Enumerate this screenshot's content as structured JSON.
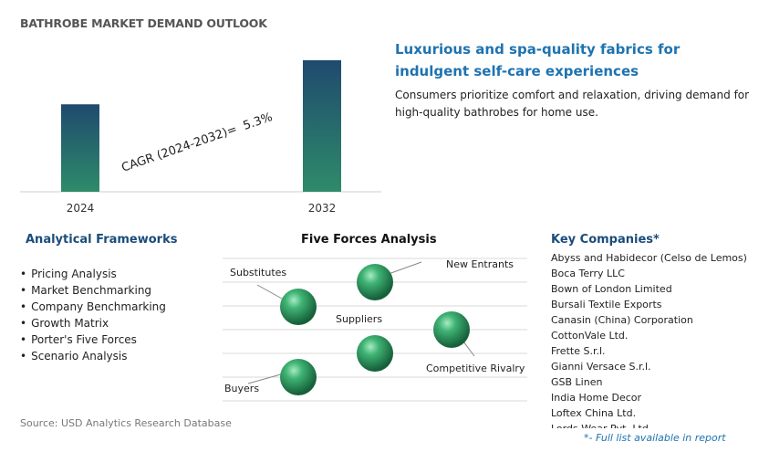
{
  "title": "BATHROBE MARKET DEMAND OUTLOOK",
  "chart_data": {
    "type": "bar",
    "categories": [
      "2024",
      "2032"
    ],
    "values": [
      0.665,
      1.0
    ],
    "ylim": [
      0,
      1
    ],
    "cagr_label": "CAGR (2024-2032)=",
    "cagr_value": "5.3%"
  },
  "headline": "Luxurious and spa-quality fabrics for indulgent self-care experiences",
  "description": "Consumers prioritize comfort and relaxation, driving demand for high-quality bathrobes for home use.",
  "frameworks": {
    "title": "Analytical Frameworks",
    "items": [
      "Pricing Analysis",
      "Market Benchmarking",
      "Company Benchmarking",
      "Growth Matrix",
      "Porter's Five Forces",
      "Scenario Analysis"
    ]
  },
  "five_forces": {
    "title": "Five Forces Analysis",
    "labels": {
      "substitutes": "Substitutes",
      "new_entrants": "New Entrants",
      "suppliers": "Suppliers",
      "competitive_rivalry": "Competitive Rivalry",
      "buyers": "Buyers"
    }
  },
  "companies": {
    "title": "Key Companies*",
    "items": [
      "Abyss and Habidecor (Celso de Lemos)",
      "Boca Terry LLC",
      "Bown of London Limited",
      "Bursali Textile Exports",
      "Canasin (China) Corporation",
      "CottonVale Ltd.",
      "Frette S.r.l.",
      "Gianni Versace S.r.l.",
      "GSB Linen",
      "India Home Decor",
      "Loftex China Ltd.",
      "Lords Wear Pvt. Ltd."
    ],
    "note": "*- Full list available in report"
  },
  "source": "Source: USD Analytics Research Database",
  "colors": {
    "bar_top": "#1f4a6e",
    "bar_bottom": "#2e8b6a",
    "sphere": "#2e9a5e",
    "headline": "#1e73b0",
    "section_title": "#1a4c7a"
  }
}
